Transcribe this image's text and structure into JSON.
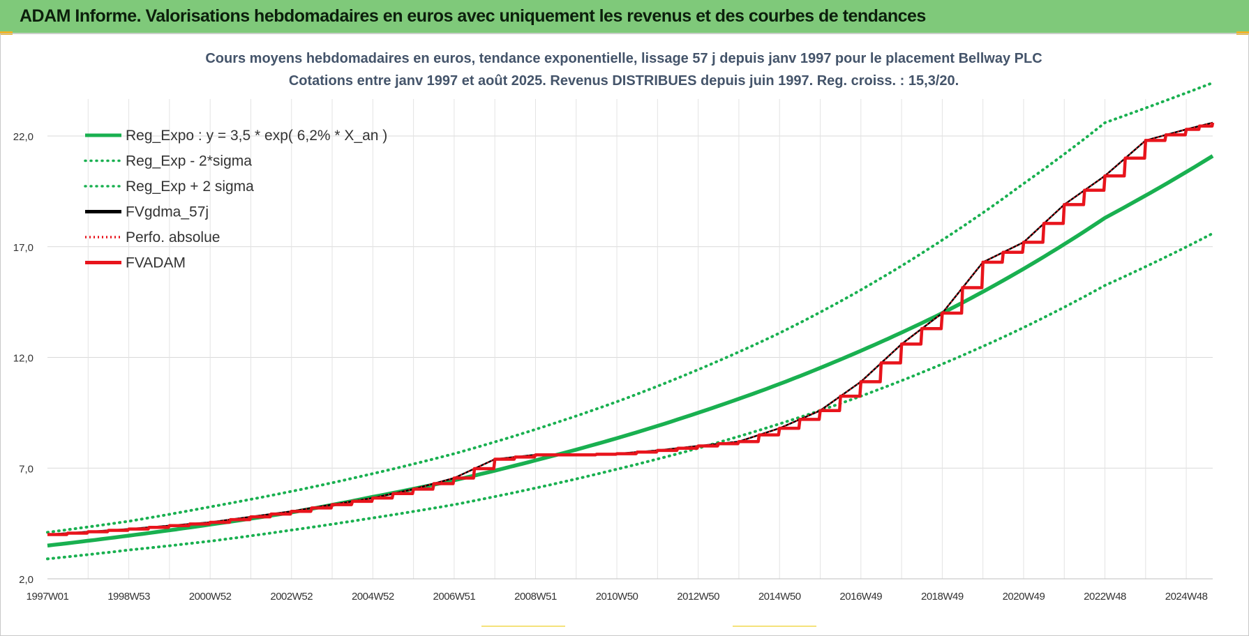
{
  "banner": {
    "title": "ADAM Informe. Valorisations hebdomadaires en euros avec uniquement les revenus et des courbes de tendances"
  },
  "chart_data": {
    "type": "line",
    "title": "Cours moyens hebdomadaires en euros, tendance exponentielle, lissage 57 j depuis janv 1997 pour le placement Bellway PLC",
    "subtitle": "Cotations entre janv 1997 et août 2025. Revenus DISTRIBUES depuis juin 1997. Reg. croiss. : 15,3/20.",
    "xlabel": "",
    "ylabel": "",
    "ylim": [
      2.0,
      24.5
    ],
    "xlim": [
      1997.0,
      2025.65
    ],
    "grid": true,
    "legend_position": "top-left",
    "yticks": [
      "2,0",
      "7,0",
      "12,0",
      "17,0",
      "22,0"
    ],
    "ytick_values": [
      2.0,
      7.0,
      12.0,
      17.0,
      22.0
    ],
    "xticks": [
      "1997W01",
      "1998W53",
      "2000W52",
      "2002W52",
      "2004W52",
      "2006W51",
      "2008W51",
      "2010W50",
      "2012W50",
      "2014W50",
      "2016W49",
      "2018W49",
      "2020W49",
      "2022W48",
      "2024W48"
    ],
    "xtick_values": [
      1997.0,
      1999.0,
      2001.0,
      2003.0,
      2005.0,
      2007.0,
      2009.0,
      2011.0,
      2013.0,
      2015.0,
      2017.0,
      2019.0,
      2021.0,
      2023.0,
      2025.0
    ],
    "series": [
      {
        "name": "Reg_Expo : y = 3,5 * exp( 6,2% *  X_an )",
        "color": "#19b050",
        "style": "solid",
        "x": [
          1997,
          1999,
          2001,
          2003,
          2005,
          2007,
          2009,
          2011,
          2013,
          2015,
          2017,
          2019,
          2021,
          2023,
          2025.65
        ],
        "values": [
          3.5,
          3.95,
          4.45,
          5.0,
          5.7,
          6.45,
          7.35,
          8.35,
          9.5,
          10.8,
          12.3,
          14.0,
          16.0,
          18.3,
          21.1
        ]
      },
      {
        "name": "Reg_Exp - 2*sigma",
        "color": "#19b050",
        "style": "dotted",
        "x": [
          1997,
          1999,
          2001,
          2003,
          2005,
          2007,
          2009,
          2011,
          2013,
          2015,
          2017,
          2019,
          2021,
          2023,
          2025.65
        ],
        "values": [
          2.9,
          3.3,
          3.7,
          4.2,
          4.75,
          5.35,
          6.1,
          6.95,
          7.9,
          9.0,
          10.25,
          11.7,
          13.35,
          15.25,
          17.6
        ]
      },
      {
        "name": "Reg_Exp + 2 sigma",
        "color": "#19b050",
        "style": "dotted",
        "x": [
          1997,
          1999,
          2001,
          2003,
          2005,
          2007,
          2009,
          2011,
          2013,
          2015,
          2017,
          2019,
          2021,
          2023,
          2025.65
        ],
        "values": [
          4.1,
          4.6,
          5.25,
          5.95,
          6.75,
          7.65,
          8.75,
          10.0,
          11.45,
          13.1,
          15.05,
          17.3,
          19.85,
          22.6,
          24.4
        ]
      },
      {
        "name": "FVgdma_57j",
        "color": "#000000",
        "style": "solid",
        "x": [
          1997,
          1999,
          2001,
          2003,
          2005,
          2006,
          2007,
          2008,
          2009,
          2010,
          2011,
          2012,
          2013,
          2014,
          2015,
          2016,
          2017,
          2018,
          2019,
          2020,
          2021,
          2022,
          2023,
          2024,
          2025,
          2025.65
        ],
        "values": [
          4.0,
          4.25,
          4.55,
          5.05,
          5.65,
          6.05,
          6.55,
          7.4,
          7.6,
          7.6,
          7.65,
          7.8,
          8.0,
          8.2,
          8.8,
          9.6,
          10.9,
          12.6,
          14.0,
          16.3,
          17.2,
          18.9,
          20.2,
          21.8,
          22.3,
          22.6
        ]
      },
      {
        "name": "Perfo. absolue",
        "color": "#e8141c",
        "style": "dotted",
        "x": [
          1997,
          1999,
          2001,
          2003,
          2005,
          2006,
          2007,
          2008,
          2009,
          2010,
          2011,
          2012,
          2013,
          2014,
          2015,
          2016,
          2017,
          2018,
          2019,
          2020,
          2021,
          2022,
          2023,
          2024,
          2025,
          2025.65
        ],
        "values": [
          4.0,
          4.25,
          4.55,
          5.05,
          5.65,
          6.05,
          6.55,
          7.4,
          7.6,
          7.6,
          7.65,
          7.8,
          8.0,
          8.2,
          8.8,
          9.6,
          10.9,
          12.6,
          14.0,
          16.3,
          17.2,
          18.9,
          20.2,
          21.8,
          22.3,
          22.6
        ]
      },
      {
        "name": "FVADAM",
        "color": "#e8141c",
        "style": "step",
        "x": [
          1997,
          1999,
          2001,
          2003,
          2005,
          2006,
          2007,
          2008,
          2009,
          2010,
          2011,
          2012,
          2013,
          2014,
          2015,
          2016,
          2017,
          2018,
          2019,
          2020,
          2021,
          2022,
          2023,
          2024,
          2025,
          2025.65
        ],
        "values": [
          4.0,
          4.25,
          4.55,
          5.05,
          5.65,
          6.05,
          6.55,
          7.4,
          7.6,
          7.6,
          7.65,
          7.8,
          8.0,
          8.2,
          8.8,
          9.6,
          10.9,
          12.6,
          14.0,
          16.3,
          17.2,
          18.9,
          20.2,
          21.8,
          22.3,
          22.6
        ]
      }
    ]
  }
}
